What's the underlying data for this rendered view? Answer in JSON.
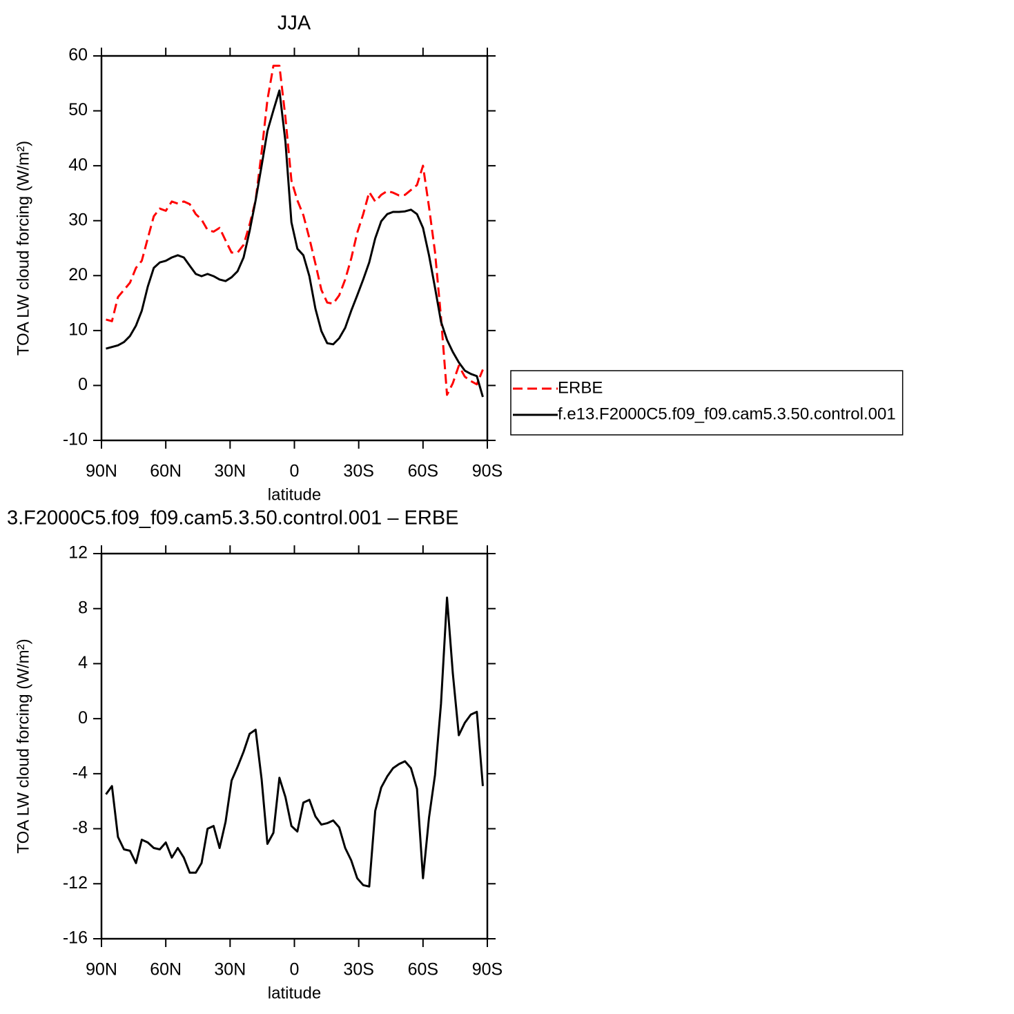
{
  "chart_data": [
    {
      "type": "line",
      "title": "JJA",
      "xlabel": "latitude",
      "ylabel": "TOA LW cloud forcing (W/m²)",
      "x": [
        87.9,
        85.1,
        82.3,
        79.5,
        76.7,
        73.9,
        71.2,
        68.4,
        65.6,
        62.8,
        60.0,
        57.2,
        54.4,
        51.6,
        48.8,
        46.0,
        43.3,
        40.5,
        37.7,
        34.9,
        32.1,
        29.3,
        26.5,
        23.7,
        20.9,
        18.1,
        15.3,
        12.6,
        9.8,
        7.0,
        4.2,
        1.4,
        -1.4,
        -4.2,
        -7.0,
        -9.8,
        -12.6,
        -15.3,
        -18.1,
        -20.9,
        -23.7,
        -26.5,
        -29.3,
        -32.1,
        -34.9,
        -37.7,
        -40.5,
        -43.3,
        -46.0,
        -48.8,
        -51.6,
        -54.4,
        -57.2,
        -60.0,
        -62.8,
        -65.6,
        -68.4,
        -71.2,
        -73.9,
        -76.7,
        -79.5,
        -82.3,
        -85.1,
        -87.9
      ],
      "series": [
        {
          "name": "ERBE",
          "color": "#ff0000",
          "line_style": "dashed",
          "values": [
            12.0,
            11.7,
            16.1,
            17.4,
            18.7,
            21.4,
            22.7,
            26.8,
            30.8,
            32.2,
            31.8,
            33.5,
            33.1,
            33.5,
            33.0,
            31.2,
            30.2,
            28.3,
            28.0,
            28.7,
            26.4,
            24.2,
            24.2,
            25.6,
            29.3,
            33.7,
            42.5,
            52.0,
            58.2,
            58.2,
            48.8,
            37.3,
            33.7,
            31.0,
            26.8,
            22.2,
            17.4,
            15.1,
            14.9,
            16.4,
            19.3,
            23.1,
            27.8,
            31.2,
            35.2,
            33.5,
            34.7,
            35.4,
            35.1,
            34.6,
            34.7,
            35.6,
            36.5,
            40.0,
            32.5,
            24.3,
            12.4,
            -1.7,
            0.4,
            3.6,
            1.6,
            0.8,
            0.2,
            2.9
          ]
        },
        {
          "name": "f.e13.F2000C5.f09_f09.cam5.3.50.control.001",
          "color": "#000000",
          "line_style": "solid",
          "values": [
            6.7,
            7.0,
            7.3,
            7.9,
            9.0,
            10.9,
            13.6,
            18.0,
            21.4,
            22.4,
            22.7,
            23.3,
            23.7,
            23.3,
            21.8,
            20.3,
            19.9,
            20.3,
            19.9,
            19.3,
            19.0,
            19.7,
            20.8,
            23.3,
            28.1,
            33.7,
            40.0,
            46.3,
            50.1,
            53.7,
            44.4,
            29.7,
            24.9,
            23.7,
            19.9,
            14.0,
            9.9,
            7.7,
            7.5,
            8.6,
            10.5,
            13.6,
            16.4,
            19.3,
            22.4,
            26.8,
            29.9,
            31.2,
            31.6,
            31.6,
            31.7,
            32.0,
            31.2,
            28.7,
            23.7,
            17.8,
            11.6,
            8.3,
            6.1,
            4.2,
            2.7,
            2.1,
            1.7,
            -2.1
          ]
        }
      ],
      "xlim": [
        90,
        -90
      ],
      "xticks": [
        {
          "value": 90,
          "label": "90N"
        },
        {
          "value": 60,
          "label": "60N"
        },
        {
          "value": 30,
          "label": "30N"
        },
        0,
        {
          "value": -30,
          "label": "30S"
        },
        {
          "value": -60,
          "label": "60S"
        },
        {
          "value": -90,
          "label": "90S"
        }
      ],
      "ylim": [
        -10,
        60
      ],
      "yticks": [
        -10,
        0,
        10,
        20,
        30,
        40,
        50,
        60
      ],
      "legend": "right"
    },
    {
      "type": "line",
      "title": "3.F2000C5.f09_f09.cam5.3.50.control.001 – ERBE",
      "xlabel": "latitude",
      "ylabel": "TOA LW cloud forcing (W/m²)",
      "x": [
        87.9,
        85.1,
        82.3,
        79.5,
        76.7,
        73.9,
        71.2,
        68.4,
        65.6,
        62.8,
        60.0,
        57.2,
        54.4,
        51.6,
        48.8,
        46.0,
        43.3,
        40.5,
        37.7,
        34.9,
        32.1,
        29.3,
        26.5,
        23.7,
        20.9,
        18.1,
        15.3,
        12.6,
        9.8,
        7.0,
        4.2,
        1.4,
        -1.4,
        -4.2,
        -7.0,
        -9.8,
        -12.6,
        -15.3,
        -18.1,
        -20.9,
        -23.7,
        -26.5,
        -29.3,
        -32.1,
        -34.9,
        -37.7,
        -40.5,
        -43.3,
        -46.0,
        -48.8,
        -51.6,
        -54.4,
        -57.2,
        -60.0,
        -62.8,
        -65.6,
        -68.4,
        -71.2,
        -73.9,
        -76.7,
        -79.5,
        -82.3,
        -85.1,
        -87.9
      ],
      "color": "#000000",
      "values": [
        -5.5,
        -4.9,
        -8.6,
        -9.5,
        -9.6,
        -10.5,
        -8.8,
        -9.0,
        -9.4,
        -9.5,
        -9.0,
        -10.1,
        -9.4,
        -10.1,
        -11.2,
        -11.2,
        -10.5,
        -8.0,
        -7.8,
        -9.4,
        -7.5,
        -4.5,
        -3.5,
        -2.4,
        -1.1,
        -0.8,
        -4.4,
        -9.1,
        -8.3,
        -4.3,
        -5.7,
        -7.8,
        -8.2,
        -6.1,
        -5.9,
        -7.1,
        -7.7,
        -7.6,
        -7.4,
        -7.9,
        -9.4,
        -10.3,
        -11.6,
        -12.1,
        -12.2,
        -6.7,
        -5.0,
        -4.2,
        -3.6,
        -3.3,
        -3.1,
        -3.6,
        -5.1,
        -11.6,
        -7.2,
        -4.1,
        1.1,
        8.8,
        3.3,
        -1.2,
        -0.3,
        0.3,
        0.5,
        -4.9
      ],
      "xlim": [
        90,
        -90
      ],
      "xticks": [
        {
          "value": 90,
          "label": "90N"
        },
        {
          "value": 60,
          "label": "60N"
        },
        {
          "value": 30,
          "label": "30N"
        },
        0,
        {
          "value": -30,
          "label": "30S"
        },
        {
          "value": -60,
          "label": "60S"
        },
        {
          "value": -90,
          "label": "90S"
        }
      ],
      "ylim": [
        -16,
        12
      ],
      "yticks": [
        -16,
        -12,
        -8,
        -4,
        0,
        4,
        8,
        12
      ]
    }
  ]
}
